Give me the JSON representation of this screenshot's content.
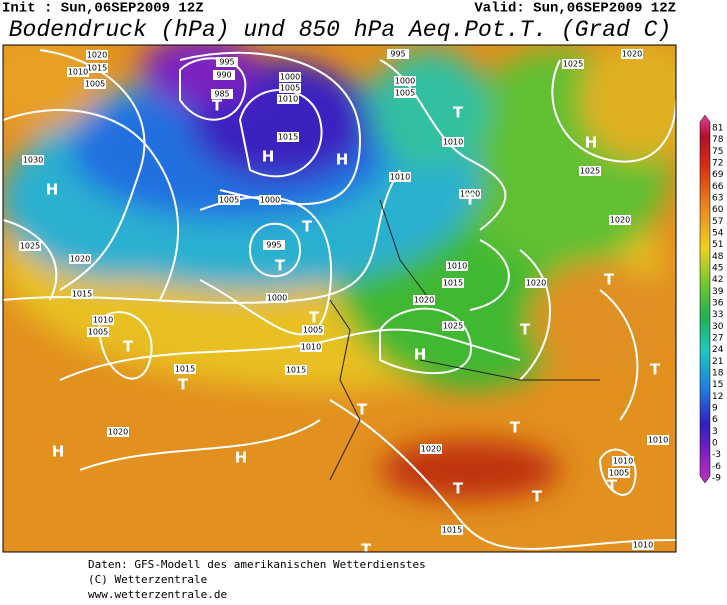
{
  "header": {
    "init": "Init : Sun,06SEP2009 12Z",
    "valid": "Valid: Sun,06SEP2009 12Z",
    "title": "Bodendruck (hPa) und 850 hPa Aeq.Pot.T. (Grad C)"
  },
  "map": {
    "pressure_labels": [
      "1020",
      "1015",
      "1010",
      "1005",
      "995",
      "990",
      "985",
      "1000",
      "1005",
      "1010",
      "1015",
      "995",
      "1000",
      "1005",
      "1010",
      "1030",
      "1010",
      "1000",
      "1005",
      "1000",
      "1025",
      "1020",
      "995",
      "1010",
      "1015",
      "1015",
      "1000",
      "1020",
      "1020",
      "1010",
      "1005",
      "1005",
      "1010",
      "1025",
      "1015",
      "1015",
      "1020",
      "1020",
      "1010",
      "1010",
      "1005",
      "1015",
      "1010",
      "1025",
      "1020",
      "1025",
      "1020"
    ],
    "markers": [
      "H",
      "T",
      "H",
      "H",
      "T",
      "T",
      "T",
      "T",
      "T",
      "T",
      "T",
      "H",
      "T",
      "T",
      "T",
      "T",
      "T",
      "H",
      "H",
      "T",
      "T",
      "T",
      "H",
      "T"
    ]
  },
  "colorbar": {
    "ticks": [
      81,
      78,
      75,
      72,
      69,
      66,
      63,
      60,
      57,
      54,
      51,
      48,
      45,
      42,
      39,
      36,
      33,
      30,
      27,
      24,
      21,
      18,
      15,
      12,
      9,
      6,
      3,
      0,
      -3,
      -6,
      -9
    ]
  },
  "footer": [
    "Daten: GFS-Modell des amerikanischen Wetterdienstes",
    "(C) Wetterzentrale",
    "www.wetterzentrale.de"
  ]
}
